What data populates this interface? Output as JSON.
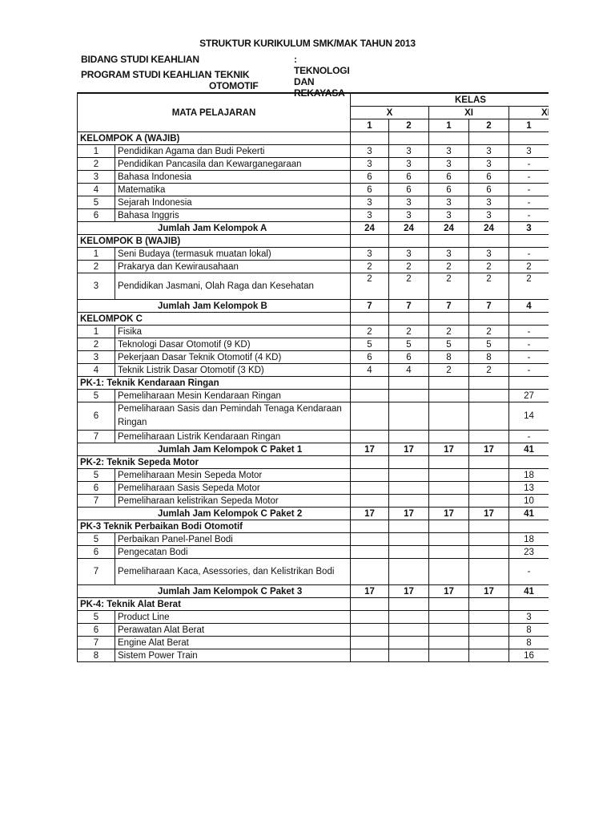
{
  "title": "STRUKTUR KURIKULUM SMK/MAK TAHUN 2013",
  "bidang": {
    "label": "BIDANG STUDI KEAHLIAN",
    "value": ": TEKNOLOGI DAN REKAYASA"
  },
  "program": {
    "label": "PROGRAM STUDI KEAHLIAN",
    "value": ": TEKNIK OTOMOTIF"
  },
  "table": {
    "subject_header": "MATA PELAJARAN",
    "kelas_header": "KELAS",
    "classes": [
      "X",
      "XI",
      "XI"
    ],
    "semesters": [
      "1",
      "2",
      "1",
      "2",
      "1"
    ],
    "rows": [
      {
        "type": "group",
        "label": "KELOMPOK A (WAJIB)"
      },
      {
        "no": "1",
        "name": "Pendidikan Agama dan Budi Pekerti",
        "v": [
          "3",
          "3",
          "3",
          "3",
          "3"
        ]
      },
      {
        "no": "2",
        "name": "Pendidikan Pancasila dan Kewarganegaraan",
        "v": [
          "3",
          "3",
          "3",
          "3",
          "-"
        ]
      },
      {
        "no": "3",
        "name": "Bahasa Indonesia",
        "v": [
          "6",
          "6",
          "6",
          "6",
          "-"
        ]
      },
      {
        "no": "4",
        "name": "Matematika",
        "v": [
          "6",
          "6",
          "6",
          "6",
          "-"
        ]
      },
      {
        "no": "5",
        "name": "Sejarah Indonesia",
        "v": [
          "3",
          "3",
          "3",
          "3",
          "-"
        ]
      },
      {
        "no": "6",
        "name": "Bahasa Inggris",
        "v": [
          "3",
          "3",
          "3",
          "3",
          "-"
        ]
      },
      {
        "type": "total",
        "label": "Jumlah Jam Kelompok A",
        "v": [
          "24",
          "24",
          "24",
          "24",
          "3"
        ]
      },
      {
        "type": "group",
        "label": "KELOMPOK B (WAJIB)"
      },
      {
        "no": "1",
        "name": "Seni Budaya (termasuk muatan lokal)",
        "v": [
          "3",
          "3",
          "3",
          "3",
          "-"
        ]
      },
      {
        "no": "2",
        "name": "Prakarya dan Kewirausahaan",
        "v": [
          "2",
          "2",
          "2",
          "2",
          "2"
        ]
      },
      {
        "no": "3",
        "name": "Pendidikan Jasmani, Olah Raga dan Kesehatan",
        "v": [
          "2",
          "2",
          "2",
          "2",
          "2"
        ],
        "tall": true
      },
      {
        "type": "total",
        "label": "Jumlah Jam Kelompok B",
        "v": [
          "7",
          "7",
          "7",
          "7",
          "4"
        ]
      },
      {
        "type": "group",
        "label": "KELOMPOK C"
      },
      {
        "no": "1",
        "name": "Fisika",
        "v": [
          "2",
          "2",
          "2",
          "2",
          "-"
        ]
      },
      {
        "no": "2",
        "name": "Teknologi Dasar Otomotif (9 KD)",
        "v": [
          "5",
          "5",
          "5",
          "5",
          "-"
        ]
      },
      {
        "no": "3",
        "name": "Pekerjaan Dasar Teknik Otomotif (4 KD)",
        "v": [
          "6",
          "6",
          "8",
          "8",
          "-"
        ]
      },
      {
        "no": "4",
        "name": "Teknik Listrik Dasar Otomotif (3 KD)",
        "v": [
          "4",
          "4",
          "2",
          "2",
          "-"
        ]
      },
      {
        "type": "group",
        "label": "PK-1: Teknik Kendaraan Ringan"
      },
      {
        "no": "5",
        "name": "Pemeliharaan Mesin Kendaraan Ringan",
        "v": [
          "",
          "",
          "",
          "",
          "27"
        ]
      },
      {
        "no": "6",
        "name": "Pemeliharaan Sasis dan Pemindah Tenaga Kendaraan Ringan",
        "v": [
          "",
          "",
          "",
          "",
          "14"
        ],
        "tall": true
      },
      {
        "no": "7",
        "name": "Pemeliharaan Listrik Kendaraan Ringan",
        "v": [
          "",
          "",
          "",
          "",
          "-"
        ]
      },
      {
        "type": "total",
        "label": "Jumlah Jam Kelompok C Paket 1",
        "v": [
          "17",
          "17",
          "17",
          "17",
          "41"
        ]
      },
      {
        "type": "group",
        "label": "PK-2: Teknik Sepeda Motor"
      },
      {
        "no": "5",
        "name": "Pemeliharaan Mesin Sepeda Motor",
        "v": [
          "",
          "",
          "",
          "",
          "18"
        ]
      },
      {
        "no": "6",
        "name": "Pemeliharaan Sasis Sepeda Motor",
        "v": [
          "",
          "",
          "",
          "",
          "13"
        ]
      },
      {
        "no": "7",
        "name": "Pemeliharaan kelistrikan Sepeda Motor",
        "v": [
          "",
          "",
          "",
          "",
          "10"
        ]
      },
      {
        "type": "total",
        "label": "Jumlah Jam Kelompok C Paket 2",
        "v": [
          "17",
          "17",
          "17",
          "17",
          "41"
        ]
      },
      {
        "type": "group",
        "label": "PK-3 Teknik Perbaikan Bodi Otomotif"
      },
      {
        "no": "5",
        "name": "Perbaikan Panel-Panel Bodi",
        "v": [
          "",
          "",
          "",
          "",
          "18"
        ]
      },
      {
        "no": "6",
        "name": "Pengecatan Bodi",
        "v": [
          "",
          "",
          "",
          "",
          "23"
        ]
      },
      {
        "no": "7",
        "name": "Pemeliharaan Kaca, Asessories, dan Kelistrikan Bodi",
        "v": [
          "",
          "",
          "",
          "",
          "-"
        ],
        "tall": true
      },
      {
        "type": "total",
        "label": "Jumlah Jam Kelompok C Paket 3",
        "v": [
          "17",
          "17",
          "17",
          "17",
          "41"
        ]
      },
      {
        "type": "group",
        "label": "PK-4:  Teknik Alat Berat"
      },
      {
        "no": "5",
        "name": "Product Line",
        "v": [
          "",
          "",
          "",
          "",
          "3"
        ]
      },
      {
        "no": "6",
        "name": "Perawatan Alat Berat",
        "v": [
          "",
          "",
          "",
          "",
          "8"
        ]
      },
      {
        "no": "7",
        "name": "Engine Alat Berat",
        "v": [
          "",
          "",
          "",
          "",
          "8"
        ]
      },
      {
        "no": "8",
        "name": "Sistem Power Train",
        "v": [
          "",
          "",
          "",
          "",
          "16"
        ]
      }
    ]
  }
}
